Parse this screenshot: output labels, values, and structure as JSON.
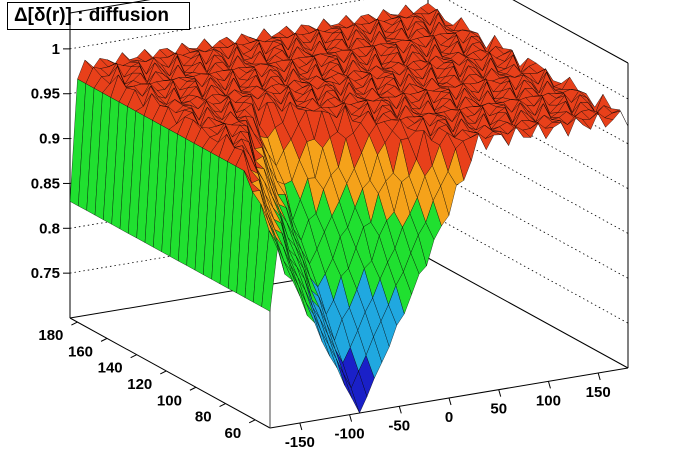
{
  "chart_data": {
    "type": "surface",
    "title": "Δ[δ(r)] : diffusion",
    "x_ticks": [
      "-150",
      "-100",
      "-50",
      "0",
      "50",
      "100",
      "150"
    ],
    "y_ticks": [
      "60",
      "80",
      "100",
      "120",
      "140",
      "160",
      "180"
    ],
    "z_ticks": [
      "0.75",
      "0.8",
      "0.85",
      "0.9",
      "0.95",
      "1"
    ],
    "xlim": [
      -180,
      180
    ],
    "ylim": [
      50,
      185
    ],
    "zlim": [
      0.7,
      1.04
    ],
    "grid": true,
    "description_values": {
      "plateau_value": 0.98,
      "dip_center_x": -90,
      "dip_min_y": 50,
      "dip_min_value": 0.7,
      "left_edge_min_value": 0.83
    },
    "colors": {
      "high": "#e8401a",
      "mid": "#f5a21a",
      "low": "#20e030",
      "lower": "#20a8e0",
      "min": "#1a20c8"
    }
  }
}
